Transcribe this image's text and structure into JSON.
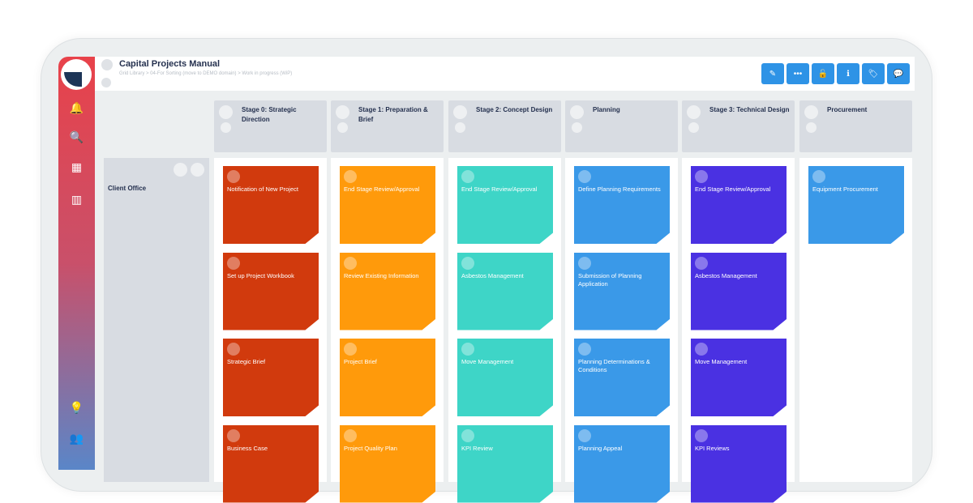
{
  "header": {
    "title": "Capital Projects Manual",
    "breadcrumb": "Grid Library > 04-For Sorting (move to DEMO domain) > Work in progress (WiP)"
  },
  "toolbar": [
    {
      "icon": "pencil-icon",
      "g": "✎"
    },
    {
      "icon": "more-icon",
      "g": "•••"
    },
    {
      "icon": "unlock-icon",
      "g": "🔓"
    },
    {
      "icon": "info-icon",
      "g": "ℹ"
    },
    {
      "icon": "tag-icon",
      "g": "🏷"
    },
    {
      "icon": "comment-icon",
      "g": "💬"
    }
  ],
  "sidebar": [
    {
      "icon": "bell-icon",
      "g": "🔔"
    },
    {
      "icon": "search-icon",
      "g": "🔍"
    },
    {
      "icon": "grid-icon",
      "g": "▦"
    },
    {
      "icon": "chart-icon",
      "g": "▥"
    },
    {
      "icon": "lightbulb-icon",
      "g": "💡"
    },
    {
      "icon": "users-icon",
      "g": "👥"
    }
  ],
  "row_label": "Client Office",
  "columns": [
    {
      "title": "Stage 0: Strategic Direction",
      "color": "#d13a0d",
      "cards": [
        "Notification of New Project",
        "Set up Project Workbook",
        "Strategic Brief",
        "Business Case"
      ]
    },
    {
      "title": "Stage 1: Preparation & Brief",
      "color": "#ff9a0b",
      "cards": [
        "End Stage Review/Approval",
        "Review Existing Information",
        "Project Brief",
        "Project Quality Plan"
      ]
    },
    {
      "title": "Stage 2: Concept Design",
      "color": "#3ed5c7",
      "cards": [
        "End Stage Review/Approval",
        "Asbestos Management",
        "Move Management",
        "KPI Review"
      ]
    },
    {
      "title": "Planning",
      "color": "#3a99e8",
      "cards": [
        "Define Planning Requirements",
        "Submission of Planning Application",
        "Planning Determinations & Conditions",
        "Planning Appeal"
      ]
    },
    {
      "title": "Stage 3: Technical Design",
      "color": "#4a31e2",
      "cards": [
        "End Stage Review/Approval",
        "Asbestos Management",
        "Move Management",
        "KPI Reviews"
      ]
    },
    {
      "title": "Procurement",
      "color": "#3a99e8",
      "cards": [
        "Equipment Procurement"
      ]
    }
  ]
}
